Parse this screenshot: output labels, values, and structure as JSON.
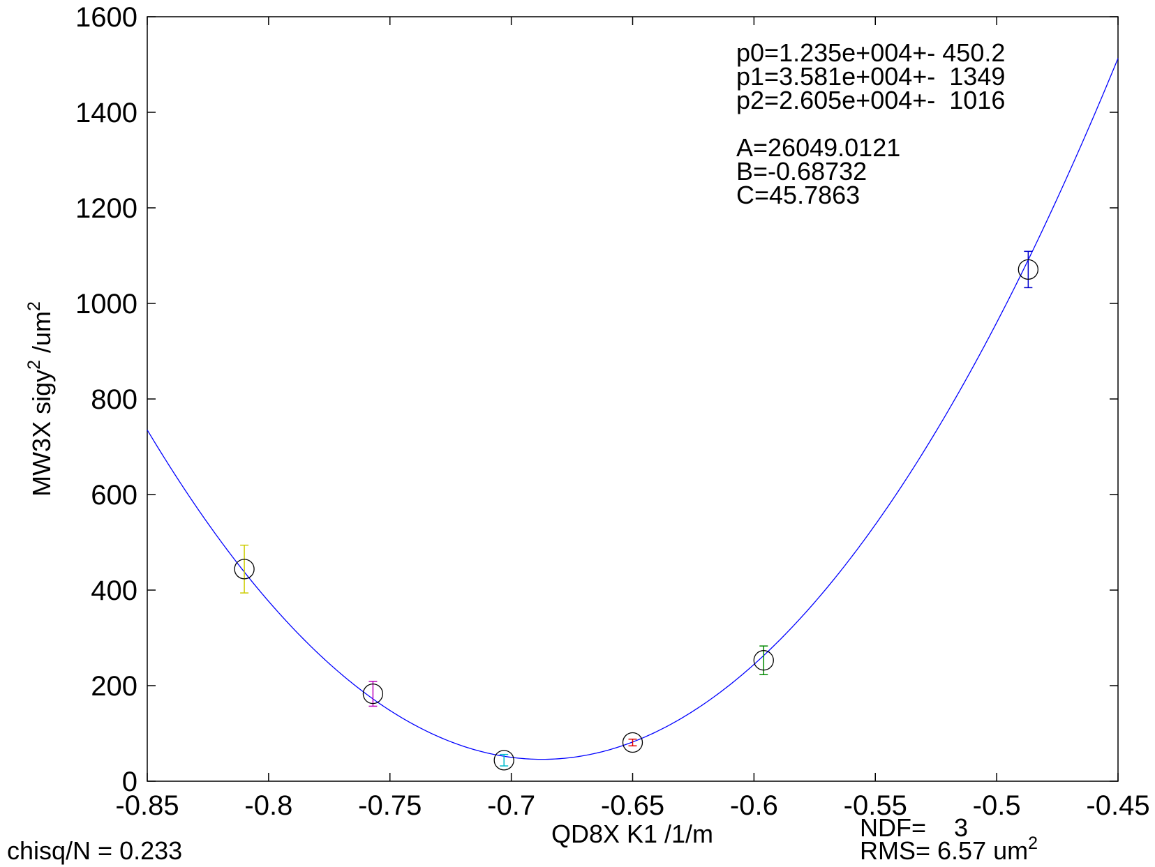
{
  "chart_data": {
    "type": "scatter",
    "xlabel": "QD8X K1 /1/m",
    "ylabel_parts": {
      "pre": "MW3X sigy",
      "sup1": "2",
      "mid": " /um",
      "sup2": "2"
    },
    "xlim": [
      -0.85,
      -0.45
    ],
    "ylim": [
      0,
      1600
    ],
    "x_ticks": [
      -0.85,
      -0.8,
      -0.75,
      -0.7,
      -0.65,
      -0.6,
      -0.55,
      -0.5,
      -0.45
    ],
    "x_tick_labels": [
      "-0.85",
      "-0.8",
      "-0.75",
      "-0.7",
      "-0.65",
      "-0.6",
      "-0.55",
      "-0.5",
      "-0.45"
    ],
    "y_ticks": [
      0,
      200,
      400,
      600,
      800,
      1000,
      1200,
      1400,
      1600
    ],
    "y_tick_labels": [
      "0",
      "200",
      "400",
      "600",
      "800",
      "1000",
      "1200",
      "1400",
      "1600"
    ],
    "grid": false,
    "points": [
      {
        "x": -0.81,
        "y": 444,
        "err": 50,
        "color": "#cccc00"
      },
      {
        "x": -0.757,
        "y": 183,
        "err": 26,
        "color": "#bb00bb"
      },
      {
        "x": -0.703,
        "y": 44,
        "err": 12,
        "color": "#00bbcc"
      },
      {
        "x": -0.65,
        "y": 81,
        "err": 7,
        "color": "#dd0000"
      },
      {
        "x": -0.596,
        "y": 253,
        "err": 30,
        "color": "#008800"
      },
      {
        "x": -0.487,
        "y": 1071,
        "err": 38,
        "color": "#0000cc"
      }
    ],
    "fit": {
      "type": "parabola",
      "A": 26049.0121,
      "B": -0.68732,
      "C": 45.7863,
      "color": "#0000ff"
    }
  },
  "fit_params": [
    "p0=1.235e+004+- 450.2",
    "p1=3.581e+004+-  1349",
    "p2=2.605e+004+-  1016"
  ],
  "fit_summary": [
    "A=26049.0121",
    "B=-0.68732",
    "C=45.7863"
  ],
  "chisq_text": "chisq/N = 0.233",
  "ndf_text": "NDF=    3",
  "rms_text": "RMS= 6.57 um",
  "rms_sup": "2",
  "colors": {
    "marker": "#000000",
    "axis": "#000000",
    "curve": "#0000ff"
  }
}
